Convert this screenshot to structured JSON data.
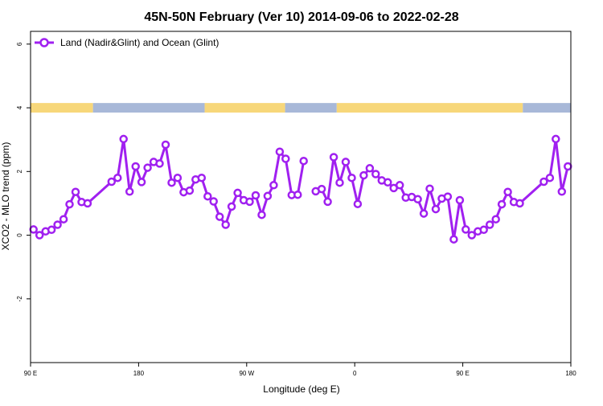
{
  "chart_data": {
    "type": "line",
    "title": "45N-50N February (Ver 10)   2014-09-06 to 2022-02-28",
    "xlabel": "Longitude (deg E)",
    "ylabel": "XCO2 - MLO trend (ppm)",
    "xlim": [
      90,
      450
    ],
    "ylim": [
      -4,
      6.4
    ],
    "x_ticks": [
      {
        "value": 90,
        "label": "90 E"
      },
      {
        "value": 180,
        "label": "180"
      },
      {
        "value": 270,
        "label": "90 W"
      },
      {
        "value": 360,
        "label": "0"
      },
      {
        "value": 450,
        "label": "90 E"
      },
      {
        "value": 540,
        "label": "180"
      }
    ],
    "y_ticks": [
      {
        "value": -2,
        "label": "-2"
      },
      {
        "value": 0,
        "label": "0"
      },
      {
        "value": 2,
        "label": "2"
      },
      {
        "value": 4,
        "label": "4"
      },
      {
        "value": 6,
        "label": "6"
      }
    ],
    "x_range": [
      90,
      540
    ],
    "legend": {
      "position": "top-left"
    },
    "colors": {
      "series": "#a020f0",
      "land": "#f7d77a",
      "ocean": "#a8b8d8"
    },
    "land_ocean_band": {
      "y_from": 3.85,
      "y_to": 4.15,
      "segments": [
        {
          "type": "land",
          "from": 90,
          "to": 142
        },
        {
          "type": "ocean",
          "from": 142,
          "to": 235
        },
        {
          "type": "land",
          "from": 235,
          "to": 302
        },
        {
          "type": "ocean",
          "from": 302,
          "to": 345
        },
        {
          "type": "land",
          "from": 345,
          "to": 500
        },
        {
          "type": "ocean",
          "from": 500,
          "to": 540
        }
      ]
    },
    "series": [
      {
        "name": "Land (Nadir&Glint) and Ocean (Glint)",
        "points": [
          [
            92.5,
            0.18
          ],
          [
            97.5,
            0.0
          ],
          [
            102.5,
            0.12
          ],
          [
            107.5,
            0.17
          ],
          [
            112.5,
            0.33
          ],
          [
            117.5,
            0.5
          ],
          [
            122.5,
            0.97
          ],
          [
            127.5,
            1.36
          ],
          [
            132.5,
            1.04
          ],
          [
            137.5,
            1.0
          ],
          [
            157.5,
            1.68
          ],
          [
            162.5,
            1.8
          ],
          [
            167.5,
            3.02
          ],
          [
            172.5,
            1.37
          ],
          [
            177.5,
            2.16
          ],
          [
            182.5,
            1.67
          ],
          [
            187.5,
            2.12
          ],
          [
            192.5,
            2.3
          ],
          [
            197.5,
            2.25
          ],
          [
            202.5,
            2.84
          ],
          [
            207.5,
            1.65
          ],
          [
            212.5,
            1.8
          ],
          [
            217.5,
            1.35
          ],
          [
            222.5,
            1.4
          ],
          [
            227.5,
            1.75
          ],
          [
            232.5,
            1.8
          ],
          [
            237.5,
            1.22
          ],
          [
            242.5,
            1.06
          ],
          [
            247.5,
            0.58
          ],
          [
            252.5,
            0.33
          ],
          [
            257.5,
            0.9
          ],
          [
            262.5,
            1.33
          ],
          [
            267.5,
            1.1
          ],
          [
            272.5,
            1.05
          ],
          [
            277.5,
            1.25
          ],
          [
            282.5,
            0.64
          ],
          [
            287.5,
            1.23
          ],
          [
            292.5,
            1.57
          ],
          [
            297.5,
            2.62
          ],
          [
            302.5,
            2.4
          ],
          [
            307.5,
            1.26
          ],
          [
            312.5,
            1.27
          ],
          [
            317.5,
            2.33
          ],
          null,
          [
            327.5,
            1.38
          ],
          [
            332.5,
            1.45
          ],
          [
            337.5,
            1.05
          ],
          [
            342.5,
            2.45
          ],
          [
            347.5,
            1.65
          ],
          [
            352.5,
            2.3
          ],
          [
            357.5,
            1.8
          ],
          [
            362.5,
            0.98
          ],
          [
            367.5,
            1.88
          ],
          [
            372.5,
            2.1
          ],
          [
            377.5,
            1.92
          ],
          [
            382.5,
            1.72
          ],
          [
            387.5,
            1.66
          ],
          [
            392.5,
            1.48
          ],
          [
            397.5,
            1.57
          ],
          [
            402.5,
            1.18
          ],
          [
            407.5,
            1.2
          ],
          [
            412.5,
            1.13
          ],
          [
            417.5,
            0.68
          ],
          [
            422.5,
            1.46
          ],
          [
            427.5,
            0.82
          ],
          [
            432.5,
            1.15
          ],
          [
            437.5,
            1.21
          ],
          [
            442.5,
            -0.13
          ],
          [
            447.5,
            1.1
          ],
          [
            452.5,
            0.18
          ],
          [
            457.5,
            0.0
          ],
          [
            462.5,
            0.12
          ],
          [
            467.5,
            0.17
          ],
          [
            472.5,
            0.33
          ],
          [
            477.5,
            0.5
          ],
          [
            482.5,
            0.97
          ],
          [
            487.5,
            1.36
          ],
          [
            492.5,
            1.04
          ],
          [
            497.5,
            1.0
          ],
          [
            517.5,
            1.68
          ],
          [
            522.5,
            1.8
          ],
          [
            527.5,
            3.02
          ],
          [
            532.5,
            1.37
          ],
          [
            537.5,
            2.16
          ]
        ]
      }
    ]
  }
}
